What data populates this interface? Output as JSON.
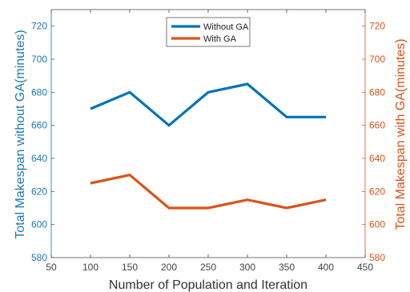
{
  "chart_data": {
    "type": "line",
    "xlabel": "Number of Population and Iteration",
    "ylabel_left": "Total Makespan without GA(minutes)",
    "ylabel_right": "Total Makespan with GA(minutes)",
    "xlim": [
      50,
      450
    ],
    "ylim_left": [
      580,
      730
    ],
    "ylim_right": [
      580,
      730
    ],
    "x_ticks": [
      50,
      100,
      150,
      200,
      250,
      300,
      350,
      400,
      450
    ],
    "y_ticks": [
      580,
      600,
      620,
      640,
      660,
      680,
      700,
      720
    ],
    "x": [
      100,
      150,
      200,
      250,
      300,
      350,
      400
    ],
    "series": [
      {
        "name": "Without GA",
        "axis": "left",
        "color": "#0072bd",
        "values": [
          670,
          680,
          660,
          680,
          685,
          665,
          665
        ]
      },
      {
        "name": "With GA",
        "axis": "right",
        "color": "#d95319",
        "values": [
          625,
          630,
          610,
          610,
          615,
          610,
          615
        ]
      }
    ],
    "legend": "top-center",
    "grid": false,
    "axis_colors": {
      "left": "#0072bd",
      "right": "#d95319"
    }
  }
}
